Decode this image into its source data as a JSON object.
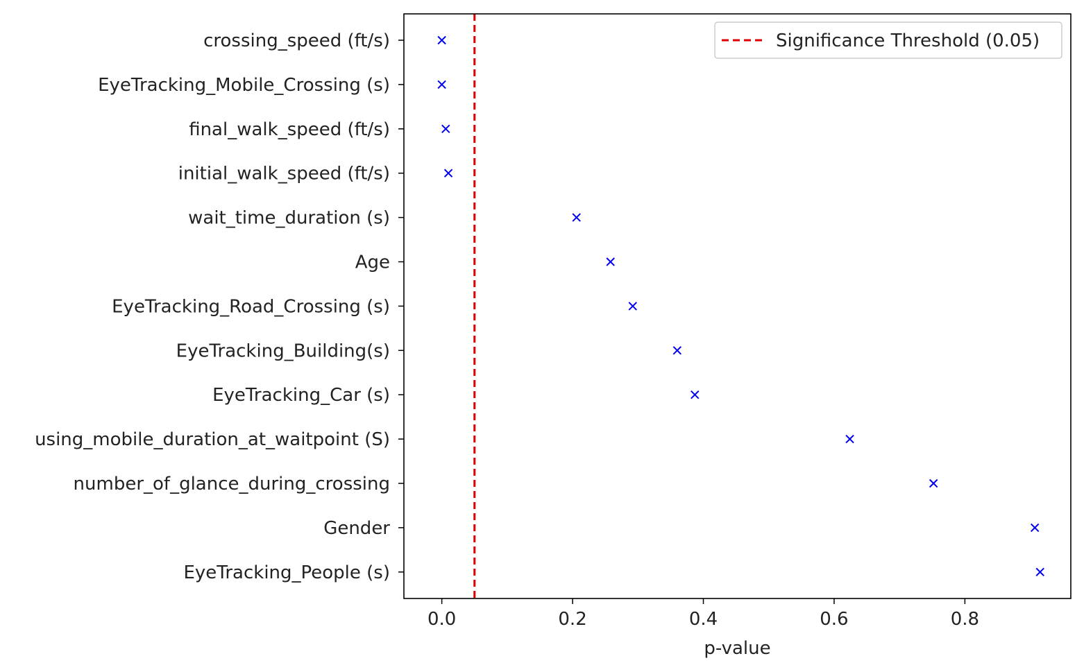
{
  "chart_data": {
    "type": "scatter",
    "title": "",
    "xlabel": "p-value",
    "ylabel": "",
    "xlim": [
      -0.058,
      0.962
    ],
    "xticks": [
      0.0,
      0.2,
      0.4,
      0.6,
      0.8
    ],
    "xtick_labels": [
      "0.0",
      "0.2",
      "0.4",
      "0.6",
      "0.8"
    ],
    "marker": "x",
    "marker_color": "#0000ee",
    "categories": [
      "crossing_speed (ft/s)",
      "EyeTracking_Mobile_Crossing (s)",
      "final_walk_speed (ft/s)",
      "initial_walk_speed (ft/s)",
      "wait_time_duration (s)",
      "Age",
      "EyeTracking_Road_Crossing (s)",
      "EyeTracking_Building(s)",
      "EyeTracking_Car (s)",
      "using_mobile_duration_at_waitpoint (S)",
      "number_of_glance_during_crossing",
      "Gender",
      "EyeTracking_People (s)"
    ],
    "values": [
      0.0,
      0.0,
      0.006,
      0.01,
      0.206,
      0.258,
      0.292,
      0.36,
      0.387,
      0.624,
      0.752,
      0.907,
      0.915
    ],
    "threshold": {
      "value": 0.05,
      "label": "Significance Threshold (0.05)",
      "color": "#e00000",
      "style": "dashed"
    },
    "legend_position": "top-right"
  }
}
